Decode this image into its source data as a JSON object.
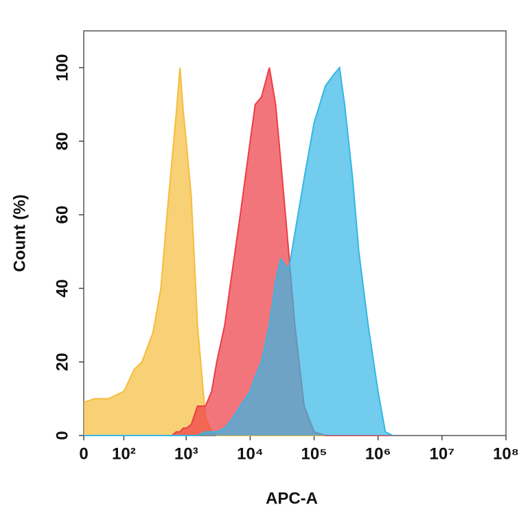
{
  "chart_data": {
    "type": "area",
    "xlabel": "APC-A",
    "ylabel": "Count (%)",
    "xscale": "biexponential",
    "x": [
      0,
      20,
      50,
      100,
      150,
      200,
      300,
      400,
      500,
      600,
      700,
      800,
      900,
      1000,
      1200,
      1500,
      2000,
      2500,
      3000,
      4000,
      5000,
      7000,
      10000,
      12000,
      15000,
      20000,
      25000,
      30000,
      40000,
      50000,
      70000,
      100000,
      150000,
      200000,
      250000,
      300000,
      400000,
      500000,
      700000,
      1000000,
      1300000,
      1700000
    ],
    "series": [
      {
        "color": "#f5bd3c",
        "values": [
          9,
          10,
          10,
          12,
          18,
          20,
          28,
          40,
          60,
          75,
          88,
          100,
          88,
          80,
          65,
          30,
          5,
          1,
          0,
          0,
          0,
          0,
          0,
          0,
          0,
          0,
          0,
          0,
          0,
          0,
          0,
          0,
          0,
          0,
          0,
          0,
          0,
          0,
          0,
          0,
          0,
          0
        ]
      },
      {
        "color": "#ee3b45",
        "values": [
          0,
          0,
          0,
          0,
          0,
          0,
          0,
          0,
          0,
          0,
          1,
          1,
          2,
          2,
          3,
          8,
          8,
          12,
          20,
          30,
          42,
          60,
          80,
          90,
          92,
          100,
          90,
          75,
          50,
          30,
          8,
          1,
          0,
          0,
          0,
          0,
          0,
          0,
          0,
          0,
          0,
          0
        ]
      },
      {
        "color": "#35b6e6",
        "values": [
          0,
          0,
          0,
          0,
          0,
          0,
          0,
          0,
          0,
          0,
          0,
          0,
          0,
          0,
          0,
          0,
          1,
          1,
          1,
          2,
          4,
          8,
          12,
          16,
          20,
          30,
          42,
          48,
          45,
          55,
          70,
          85,
          95,
          98,
          100,
          90,
          70,
          50,
          30,
          12,
          1,
          0
        ]
      }
    ],
    "xlim": [
      0,
      100000000
    ],
    "xticks": [
      0,
      {
        "value": 100,
        "label": "10²"
      },
      {
        "value": 1000,
        "label": "10³"
      },
      {
        "value": 10000,
        "label": "10⁴"
      },
      {
        "value": 100000,
        "label": "10⁵"
      },
      {
        "value": 1000000,
        "label": "10⁶"
      },
      {
        "value": 10000000,
        "label": "10⁷"
      },
      {
        "value": 100000000,
        "label": "10⁸"
      }
    ],
    "ylim": [
      0,
      110
    ],
    "yticks": [
      0,
      20,
      40,
      60,
      80,
      100
    ]
  }
}
